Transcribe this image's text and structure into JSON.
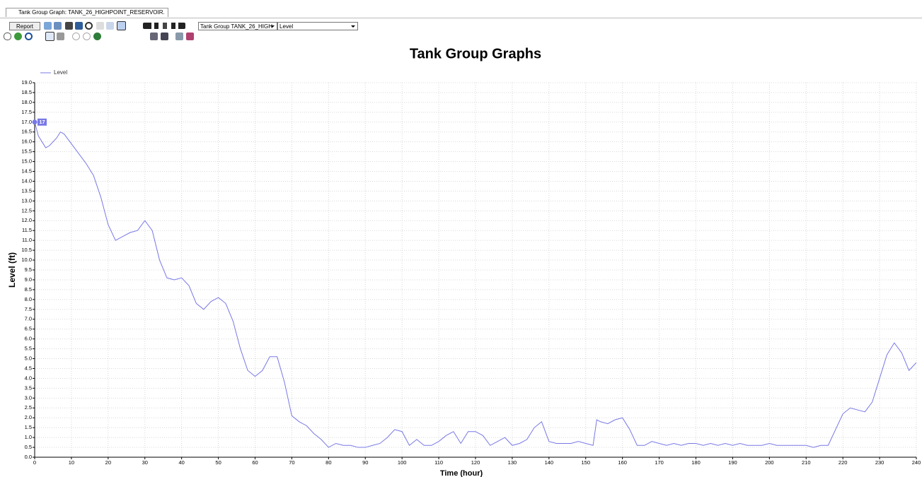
{
  "window": {
    "tab_title": "Tank Group Graph: TANK_26_HIGHPOINT_RESERVOIR.",
    "report_button": "Report",
    "group_select": "Tank Group TANK_26_HIGH",
    "param_select": "Level"
  },
  "chart_data": {
    "type": "line",
    "title": "Tank Group Graphs",
    "xlabel": "Time (hour)",
    "ylabel": "Level (ft)",
    "x": [
      0,
      1,
      2,
      3,
      4,
      6,
      7,
      8,
      10,
      12,
      14,
      16,
      18,
      20,
      22,
      24,
      26,
      28,
      30,
      32,
      34,
      36,
      38,
      40,
      42,
      44,
      46,
      48,
      50,
      52,
      54,
      56,
      58,
      60,
      62,
      64,
      66,
      68,
      70,
      72,
      74,
      76,
      78,
      80,
      82,
      84,
      86,
      88,
      90,
      92,
      94,
      96,
      98,
      100,
      102,
      104,
      106,
      108,
      110,
      112,
      114,
      116,
      118,
      120,
      122,
      124,
      126,
      128,
      130,
      132,
      134,
      136,
      138,
      140,
      142,
      144,
      146,
      148,
      150,
      152,
      153,
      154,
      156,
      158,
      160,
      162,
      164,
      166,
      168,
      170,
      172,
      174,
      176,
      178,
      180,
      182,
      184,
      186,
      188,
      190,
      192,
      194,
      196,
      198,
      200,
      202,
      204,
      206,
      208,
      210,
      212,
      214,
      216,
      218,
      220,
      222,
      224,
      226,
      228,
      230,
      232,
      234,
      236,
      238,
      240
    ],
    "series": [
      {
        "name": "Level",
        "color": "#7878e6",
        "values": [
          17.0,
          16.3,
          16.0,
          15.7,
          15.8,
          16.2,
          16.5,
          16.4,
          15.9,
          15.4,
          14.9,
          14.3,
          13.2,
          11.8,
          11.0,
          11.2,
          11.4,
          11.5,
          12.0,
          11.5,
          10.0,
          9.1,
          9.0,
          9.1,
          8.7,
          7.8,
          7.5,
          7.9,
          8.1,
          7.8,
          6.9,
          5.5,
          4.4,
          4.1,
          4.4,
          5.1,
          5.1,
          3.8,
          2.1,
          1.8,
          1.6,
          1.2,
          0.9,
          0.5,
          0.7,
          0.6,
          0.6,
          0.5,
          0.5,
          0.6,
          0.7,
          1.0,
          1.4,
          1.3,
          0.6,
          0.9,
          0.6,
          0.6,
          0.8,
          1.1,
          1.3,
          0.7,
          1.3,
          1.3,
          1.1,
          0.6,
          0.8,
          1.0,
          0.6,
          0.7,
          0.9,
          1.5,
          1.8,
          0.8,
          0.7,
          0.7,
          0.7,
          0.8,
          0.7,
          0.6,
          1.9,
          1.8,
          1.7,
          1.9,
          2.0,
          1.4,
          0.6,
          0.6,
          0.8,
          0.7,
          0.6,
          0.7,
          0.6,
          0.7,
          0.7,
          0.6,
          0.7,
          0.6,
          0.7,
          0.6,
          0.7,
          0.6,
          0.6,
          0.6,
          0.7,
          0.6,
          0.6,
          0.6,
          0.6,
          0.6,
          0.5,
          0.6,
          0.6,
          1.4,
          2.2,
          2.5,
          2.4,
          2.3,
          2.8,
          4.0,
          5.2,
          5.8,
          5.3,
          4.4,
          4.8
        ]
      }
    ],
    "annotation": {
      "x": 0,
      "value": 17
    },
    "xlim": [
      0,
      240
    ],
    "ylim": [
      0,
      19
    ],
    "xticks": [
      0,
      10,
      20,
      30,
      40,
      50,
      60,
      70,
      80,
      90,
      100,
      110,
      120,
      130,
      140,
      150,
      160,
      170,
      180,
      190,
      200,
      210,
      220,
      230,
      240
    ],
    "yticks": [
      {
        "value": 0,
        "label": "0.0"
      },
      0.5,
      {
        "value": 1,
        "label": "1.0"
      },
      1.5,
      {
        "value": 2,
        "label": "2.0"
      },
      2.5,
      {
        "value": 3,
        "label": "3.0"
      },
      3.5,
      {
        "value": 4,
        "label": "4.0"
      },
      4.5,
      {
        "value": 5,
        "label": "5.0"
      },
      5.5,
      {
        "value": 6,
        "label": "6.0"
      },
      6.5,
      {
        "value": 7,
        "label": "7.0"
      },
      7.5,
      {
        "value": 8,
        "label": "8.0"
      },
      8.5,
      {
        "value": 9,
        "label": "9.0"
      },
      9.5,
      {
        "value": 10,
        "label": "10.0"
      },
      10.5,
      {
        "value": 11,
        "label": "11.0"
      },
      11.5,
      {
        "value": 12,
        "label": "12.0"
      },
      12.5,
      {
        "value": 13,
        "label": "13.0"
      },
      13.5,
      {
        "value": 14,
        "label": "14.0"
      },
      14.5,
      {
        "value": 15,
        "label": "15.0"
      },
      15.5,
      {
        "value": 16,
        "label": "16.0"
      },
      16.5,
      {
        "value": 17,
        "label": "17.0"
      },
      17.5,
      {
        "value": 18,
        "label": "18.0"
      },
      18.5,
      {
        "value": 19,
        "label": "19.0"
      }
    ],
    "grid": true,
    "legend": "top-left"
  }
}
